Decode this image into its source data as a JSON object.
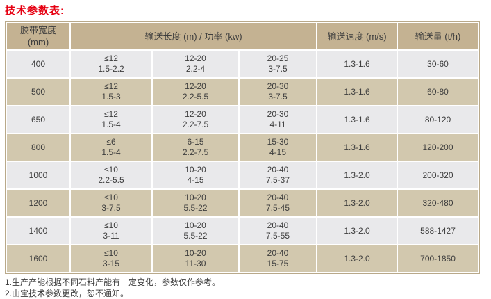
{
  "title": "技术参数表:",
  "colors": {
    "title": "#e60012",
    "header_bg": "#c4b292",
    "row_tan_bg": "#d2c8ae",
    "row_gray_bg": "#e9e9eb",
    "border": "#b9a98a",
    "text": "#3d3d3d"
  },
  "table": {
    "headers": {
      "belt_width_line1": "胶带宽度",
      "belt_width_line2": "(mm)",
      "length_power": "输送长度 (m) / 功率 (kw)",
      "speed": "输送速度 (m/s)",
      "capacity": "输送量 (t/h)"
    },
    "rows": [
      {
        "width": "400",
        "length_power": [
          {
            "top": "≤12",
            "bottom": "1.5-2.2"
          },
          {
            "top": "12-20",
            "bottom": "2.2-4"
          },
          {
            "top": "20-25",
            "bottom": "3-7.5"
          }
        ],
        "speed": "1.3-1.6",
        "capacity": "30-60"
      },
      {
        "width": "500",
        "length_power": [
          {
            "top": "≤12",
            "bottom": "1.5-3"
          },
          {
            "top": "12-20",
            "bottom": "2.2-5.5"
          },
          {
            "top": "20-30",
            "bottom": "3-7.5"
          }
        ],
        "speed": "1.3-1.6",
        "capacity": "60-80"
      },
      {
        "width": "650",
        "length_power": [
          {
            "top": "≤12",
            "bottom": "1.5-4"
          },
          {
            "top": "12-20",
            "bottom": "2.2-7.5"
          },
          {
            "top": "20-30",
            "bottom": "4-11"
          }
        ],
        "speed": "1.3-1.6",
        "capacity": "80-120"
      },
      {
        "width": "800",
        "length_power": [
          {
            "top": "≤6",
            "bottom": "1.5-4"
          },
          {
            "top": "6-15",
            "bottom": "2.2-7.5"
          },
          {
            "top": "15-30",
            "bottom": "4-15"
          }
        ],
        "speed": "1.3-1.6",
        "capacity": "120-200"
      },
      {
        "width": "1000",
        "length_power": [
          {
            "top": "≤10",
            "bottom": "2.2-5.5"
          },
          {
            "top": "10-20",
            "bottom": "4-15"
          },
          {
            "top": "20-40",
            "bottom": "7.5-37"
          }
        ],
        "speed": "1.3-2.0",
        "capacity": "200-320"
      },
      {
        "width": "1200",
        "length_power": [
          {
            "top": "≤10",
            "bottom": "3-7.5"
          },
          {
            "top": "10-20",
            "bottom": "5.5-22"
          },
          {
            "top": "20-40",
            "bottom": "7.5-45"
          }
        ],
        "speed": "1.3-2.0",
        "capacity": "320-480"
      },
      {
        "width": "1400",
        "length_power": [
          {
            "top": "≤10",
            "bottom": "3-11"
          },
          {
            "top": "10-20",
            "bottom": "5.5-22"
          },
          {
            "top": "20-40",
            "bottom": "7.5-55"
          }
        ],
        "speed": "1.3-2.0",
        "capacity": "588-1427"
      },
      {
        "width": "1600",
        "length_power": [
          {
            "top": "≤10",
            "bottom": "3-15"
          },
          {
            "top": "10-20",
            "bottom": "11-30"
          },
          {
            "top": "20-40",
            "bottom": "15-75"
          }
        ],
        "speed": "1.3-2.0",
        "capacity": "700-1850"
      }
    ]
  },
  "notes": [
    "1.生产产能根据不同石料产能有一定变化，参数仅作参考。",
    "2.山宝技术参数更改，恕不通知。"
  ]
}
